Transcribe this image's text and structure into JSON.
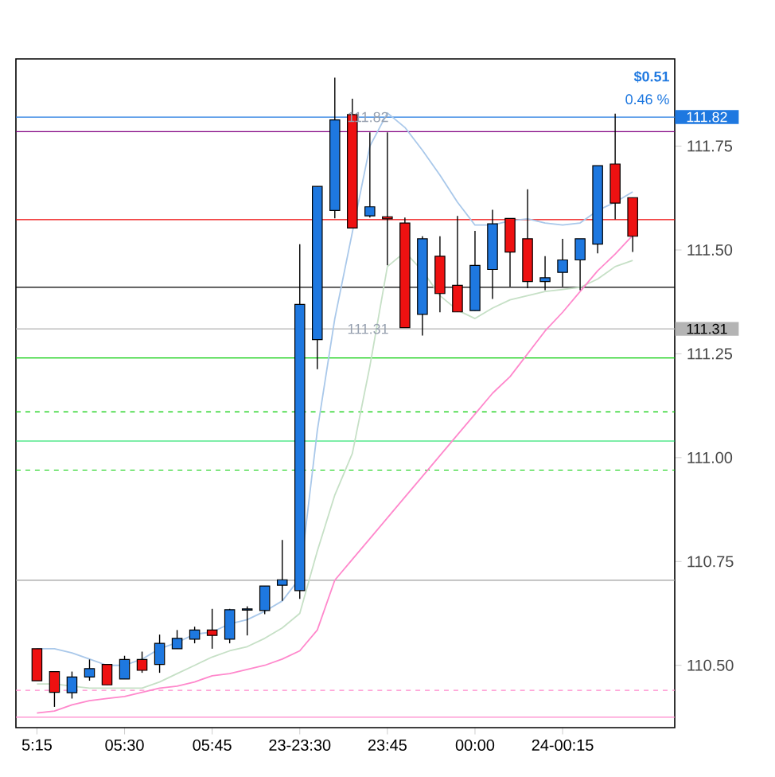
{
  "chart_data": {
    "type": "candlestick",
    "categories": [
      "5:15",
      null,
      null,
      null,
      null,
      "05:30",
      null,
      null,
      null,
      null,
      "05:45",
      null,
      null,
      null,
      null,
      "23-23:30",
      null,
      null,
      null,
      null,
      "23:45",
      null,
      null,
      null,
      null,
      "00:00",
      null,
      null,
      null,
      null,
      "24-00:15",
      null,
      null,
      null,
      null
    ],
    "ohlc": [
      [
        110.54,
        110.54,
        110.463,
        110.463
      ],
      [
        110.485,
        110.485,
        110.4,
        110.435
      ],
      [
        110.434,
        110.485,
        110.42,
        110.472
      ],
      [
        110.472,
        110.514,
        110.463,
        110.492
      ],
      [
        110.502,
        110.502,
        110.453,
        110.453
      ],
      [
        110.467,
        110.523,
        110.467,
        110.514
      ],
      [
        110.514,
        110.533,
        110.482,
        110.488
      ],
      [
        110.502,
        110.574,
        110.482,
        110.553
      ],
      [
        110.54,
        110.585,
        110.54,
        110.565
      ],
      [
        110.563,
        110.593,
        110.553,
        110.585
      ],
      [
        110.585,
        110.636,
        110.54,
        110.572
      ],
      [
        110.563,
        110.636,
        110.553,
        110.634
      ],
      [
        110.633,
        110.642,
        110.572,
        110.636
      ],
      [
        110.632,
        110.691,
        110.623,
        110.691
      ],
      [
        110.693,
        110.802,
        110.655,
        110.706
      ],
      [
        110.68,
        111.514,
        110.66,
        111.369
      ],
      [
        111.284,
        111.653,
        111.213,
        111.653
      ],
      [
        111.595,
        111.915,
        111.576,
        111.813
      ],
      [
        111.826,
        111.864,
        111.553,
        111.553
      ],
      [
        111.582,
        111.783,
        111.578,
        111.604
      ],
      [
        111.58,
        111.783,
        111.463,
        111.575
      ],
      [
        111.565,
        111.578,
        111.313,
        111.313
      ],
      [
        111.345,
        111.533,
        111.294,
        111.527
      ],
      [
        111.485,
        111.533,
        111.35,
        111.395
      ],
      [
        111.415,
        111.582,
        111.351,
        111.351
      ],
      [
        111.354,
        111.546,
        111.354,
        111.463
      ],
      [
        111.453,
        111.597,
        111.382,
        111.563
      ],
      [
        111.576,
        111.576,
        111.412,
        111.495
      ],
      [
        111.527,
        111.646,
        111.408,
        111.424
      ],
      [
        111.424,
        111.485,
        111.403,
        111.433
      ],
      [
        111.446,
        111.527,
        111.412,
        111.476
      ],
      [
        111.476,
        111.527,
        111.403,
        111.527
      ],
      [
        111.514,
        111.703,
        111.492,
        111.703
      ],
      [
        111.707,
        111.828,
        111.574,
        111.613
      ],
      [
        111.626,
        111.626,
        111.495,
        111.533
      ]
    ],
    "colors": [
      "#ee1111",
      "#ee1111",
      "#1e78e0",
      "#1e78e0",
      "#ee1111",
      "#1e78e0",
      "#ee1111",
      "#1e78e0",
      "#1e78e0",
      "#1e78e0",
      "#ee1111",
      "#1e78e0",
      "#1e78e0",
      "#1e78e0",
      "#1e78e0",
      "#1e78e0",
      "#1e78e0",
      "#1e78e0",
      "#ee1111",
      "#1e78e0",
      "#ee1111",
      "#ee1111",
      "#1e78e0",
      "#ee1111",
      "#ee1111",
      "#1e78e0",
      "#1e78e0",
      "#ee1111",
      "#ee1111",
      "#1e78e0",
      "#1e78e0",
      "#1e78e0",
      "#1e78e0",
      "#ee1111",
      "#ee1111"
    ],
    "series": [
      {
        "type": "line",
        "color": "#a9c8ea",
        "values": [
          110.54,
          110.54,
          110.53,
          110.515,
          110.5,
          110.5,
          110.515,
          110.54,
          110.555,
          110.575,
          110.58,
          110.6,
          110.61,
          110.63,
          110.655,
          110.71,
          111.065,
          111.335,
          null,
          111.75,
          111.83,
          111.795,
          111.74,
          111.68,
          111.615,
          111.56,
          111.56,
          111.57,
          111.575,
          111.565,
          111.56,
          111.565,
          111.595,
          111.615,
          111.64
        ]
      },
      {
        "type": "line",
        "color": "#c6e0c6",
        "values": [
          110.455,
          110.455,
          110.45,
          110.445,
          110.445,
          110.445,
          110.445,
          110.46,
          110.48,
          110.5,
          110.52,
          110.535,
          110.545,
          110.565,
          110.59,
          110.625,
          110.775,
          110.91,
          111.01,
          111.22,
          111.46,
          111.495,
          111.45,
          111.39,
          111.355,
          111.335,
          111.36,
          111.38,
          111.39,
          111.4,
          111.405,
          111.41,
          111.43,
          111.46,
          111.475
        ]
      },
      {
        "type": "line",
        "color": "#ff88cc",
        "values": [
          110.385,
          110.39,
          110.405,
          110.415,
          110.42,
          110.425,
          110.435,
          110.445,
          110.45,
          110.46,
          110.475,
          110.48,
          110.49,
          110.5,
          110.515,
          110.535,
          110.585,
          110.705,
          110.755,
          110.805,
          110.855,
          110.905,
          110.955,
          111.005,
          111.055,
          111.105,
          111.155,
          111.195,
          111.25,
          111.305,
          111.35,
          111.4,
          111.45,
          111.49,
          111.535
        ]
      }
    ],
    "ylim": [
      110.35,
      111.96
    ],
    "yticks": [
      {
        "value": 110.5,
        "label": "110.50"
      },
      {
        "value": 110.75,
        "label": "110.75"
      },
      {
        "value": 111.0,
        "label": "111.00"
      },
      {
        "value": 111.25,
        "label": "111.25"
      },
      {
        "value": 111.5,
        "label": "111.50"
      },
      {
        "value": 111.75,
        "label": "111.75"
      }
    ],
    "ref_lines": [
      {
        "axis": "y",
        "value": 111.82,
        "label": "111.82",
        "color": "#1e78e0"
      },
      {
        "axis": "y",
        "value": 111.785,
        "color": "#800080"
      },
      {
        "axis": "y",
        "value": 111.573,
        "color": "#ee0000"
      },
      {
        "axis": "y",
        "value": 111.41,
        "color": "#000000"
      },
      {
        "axis": "y",
        "value": 111.31,
        "label": "111.31",
        "color": "#b4b4b4"
      },
      {
        "axis": "y",
        "value": 111.24,
        "color": "#00cc00"
      },
      {
        "axis": "y",
        "value": 111.11,
        "color": "#00cc00",
        "line_style": "dashed"
      },
      {
        "axis": "y",
        "value": 111.04,
        "color": "#00dd55"
      },
      {
        "axis": "y",
        "value": 110.97,
        "color": "#00cc00",
        "line_style": "dashed"
      },
      {
        "axis": "y",
        "value": 110.705,
        "color": "#a0a0a0"
      },
      {
        "axis": "y",
        "value": 110.44,
        "color": "#ff88cc",
        "line_style": "dashed"
      },
      {
        "axis": "y",
        "value": 110.375,
        "color": "#ff88cc"
      }
    ],
    "annotations": [
      "$0.51",
      "0.46 %",
      {
        "text": "111.82",
        "y": 111.82
      },
      {
        "text": "111.31",
        "y": 111.31
      }
    ]
  }
}
